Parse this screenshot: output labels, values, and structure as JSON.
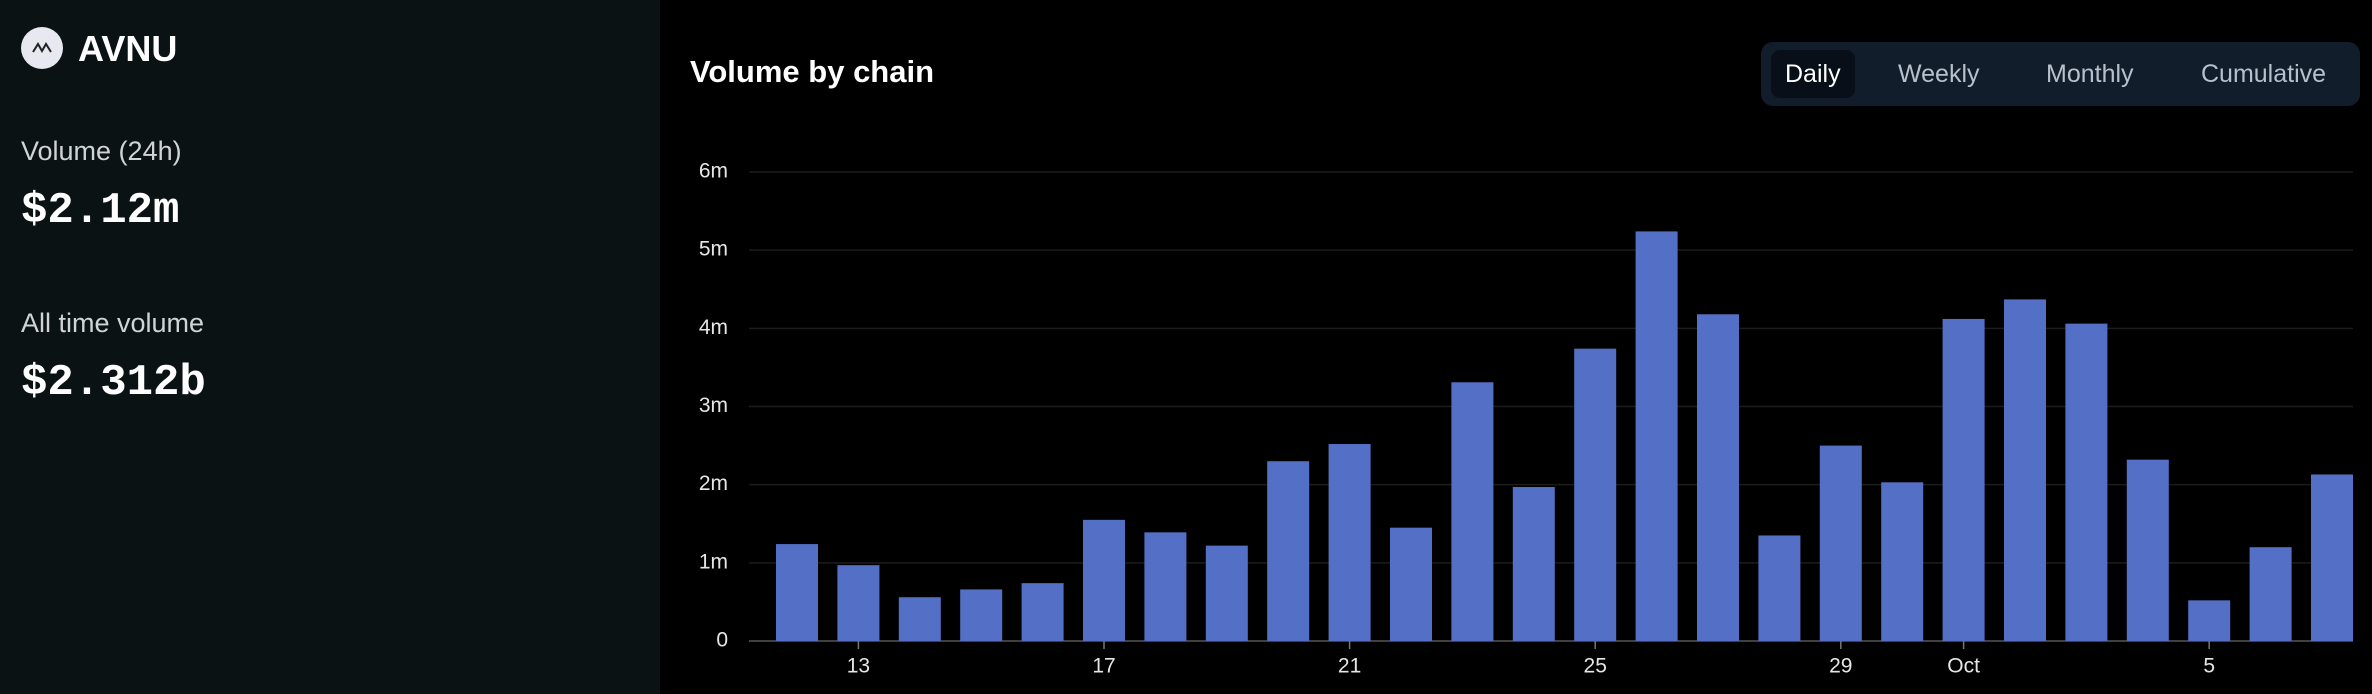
{
  "header": {
    "name": "AVNU"
  },
  "stats": [
    {
      "label": "Volume (24h)",
      "value": "$2.12m"
    },
    {
      "label": "All time volume",
      "value": "$2.312b"
    }
  ],
  "tabs": [
    "Daily",
    "Weekly",
    "Monthly",
    "Cumulative"
  ],
  "chart_data": {
    "type": "bar",
    "title": "Volume by chain",
    "color": "#5470c6",
    "categories": [
      null,
      "13",
      null,
      null,
      null,
      "17",
      null,
      null,
      null,
      "21",
      null,
      null,
      null,
      "25",
      null,
      null,
      null,
      "29",
      null,
      "Oct",
      null,
      null,
      null,
      "5",
      null,
      null
    ],
    "values": [
      1.24,
      0.97,
      0.56,
      0.66,
      0.74,
      1.55,
      1.39,
      1.22,
      2.3,
      2.52,
      1.45,
      3.31,
      1.97,
      3.74,
      5.24,
      4.18,
      1.35,
      2.5,
      2.03,
      4.12,
      4.37,
      4.06,
      2.32,
      0.52,
      1.2,
      2.13
    ],
    "ylim": [
      0,
      6
    ],
    "yticks": [
      0,
      {
        "value": 1,
        "label": "1m"
      },
      {
        "value": 2,
        "label": "2m"
      },
      {
        "value": 3,
        "label": "3m"
      },
      {
        "value": 4,
        "label": "4m"
      },
      {
        "value": 5,
        "label": "5m"
      },
      {
        "value": 6,
        "label": "6m"
      }
    ],
    "grid": true
  }
}
